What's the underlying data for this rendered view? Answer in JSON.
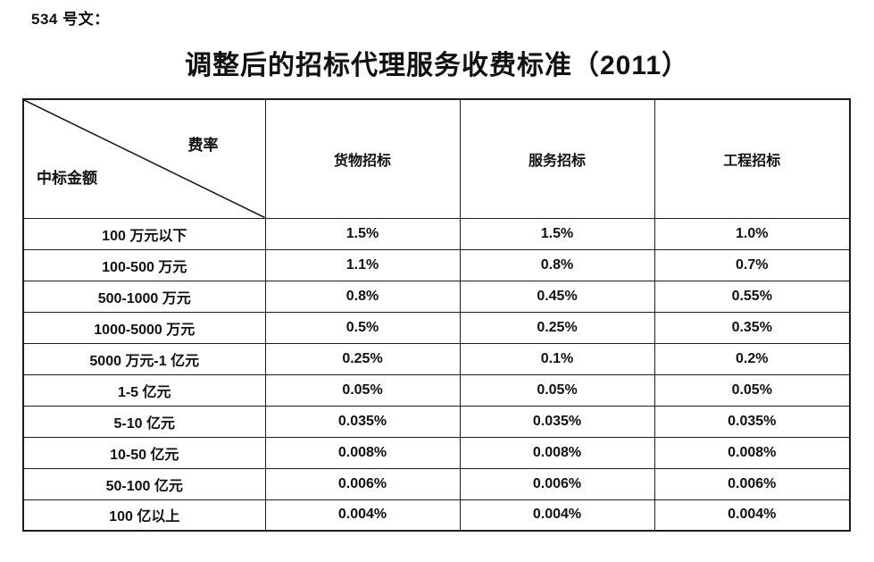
{
  "doc": {
    "doc_number": "534 号文：",
    "title": "调整后的招标代理服务收费标准（2011）"
  },
  "table": {
    "corner": {
      "top_right": "费率",
      "bottom_left": "中标金额"
    },
    "columns": [
      "货物招标",
      "服务招标",
      "工程招标"
    ],
    "rows": [
      {
        "label": "100 万元以下",
        "values": [
          "1.5%",
          "1.5%",
          "1.0%"
        ]
      },
      {
        "label": "100-500 万元",
        "values": [
          "1.1%",
          "0.8%",
          "0.7%"
        ]
      },
      {
        "label": "500-1000 万元",
        "values": [
          "0.8%",
          "0.45%",
          "0.55%"
        ]
      },
      {
        "label": "1000-5000 万元",
        "values": [
          "0.5%",
          "0.25%",
          "0.35%"
        ]
      },
      {
        "label": "5000 万元-1 亿元",
        "values": [
          "0.25%",
          "0.1%",
          "0.2%"
        ]
      },
      {
        "label": "1-5 亿元",
        "values": [
          "0.05%",
          "0.05%",
          "0.05%"
        ]
      },
      {
        "label": "5-10 亿元",
        "values": [
          "0.035%",
          "0.035%",
          "0.035%"
        ]
      },
      {
        "label": "10-50 亿元",
        "values": [
          "0.008%",
          "0.008%",
          "0.008%"
        ]
      },
      {
        "label": "50-100 亿元",
        "values": [
          "0.006%",
          "0.006%",
          "0.006%"
        ]
      },
      {
        "label": "100 亿以上",
        "values": [
          "0.004%",
          "0.004%",
          "0.004%"
        ]
      }
    ]
  },
  "style": {
    "border_color": "#1c1c1c",
    "text_color": "#111111",
    "background": "#ffffff"
  }
}
